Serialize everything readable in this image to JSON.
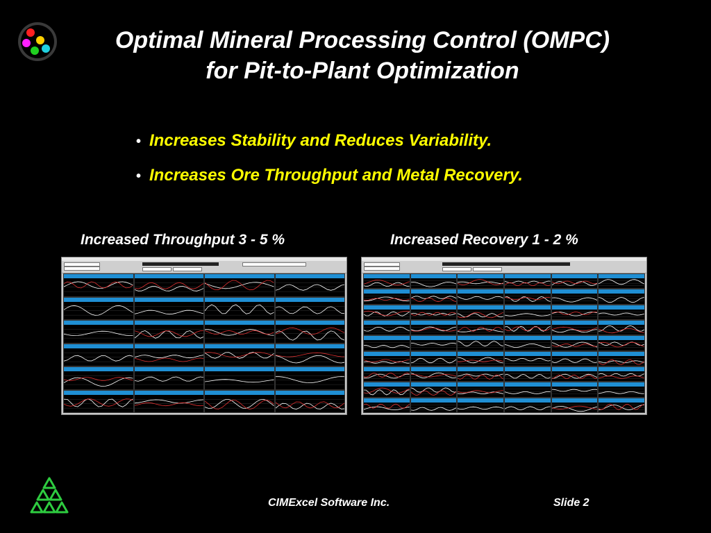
{
  "title": {
    "line1": "Optimal Mineral Processing Control (OMPC)",
    "line2": "for Pit-to-Plant Optimization"
  },
  "bullets": [
    "Increases Stability and Reduces Variability.",
    "Increases Ore Throughput and Metal Recovery."
  ],
  "captions": {
    "left": "Increased Throughput  3 - 5 %",
    "right": "Increased Recovery  1 - 2 %"
  },
  "footer": {
    "company": "CIMExcel Software Inc.",
    "slide": "Slide 2"
  },
  "colors": {
    "background": "#000000",
    "title": "#ffffff",
    "bullet_text": "#ffff00",
    "panel_header": "#1f8fd4",
    "trace_white": "#ffffff",
    "trace_red": "#e03030",
    "logo_green": "#2ecc40"
  },
  "icons": {
    "top_logo": "colored-dots-logo-icon",
    "bottom_logo": "green-triangles-logo-icon"
  },
  "screenshots": {
    "left": {
      "columns": 4,
      "rows": 6
    },
    "right": {
      "columns": 6,
      "rows": 9
    }
  }
}
